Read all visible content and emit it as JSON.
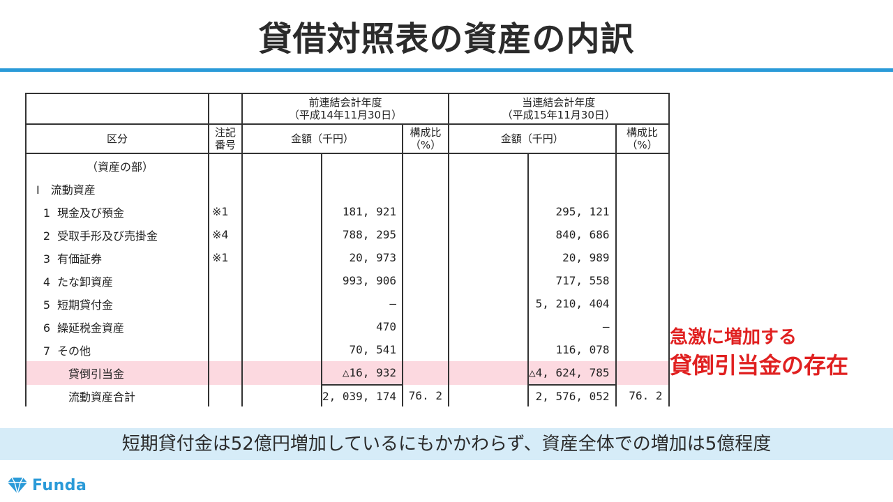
{
  "title": "貸借対照表の資産の内訳",
  "table": {
    "header": {
      "prev_period_label": "前連結会計年度",
      "prev_period_date": "（平成14年11月30日）",
      "curr_period_label": "当連結会計年度",
      "curr_period_date": "（平成15年11月30日）",
      "category": "区分",
      "note_line1": "注記",
      "note_line2": "番号",
      "amount_prev": "金額（千円）",
      "ratio_prev_line1": "構成比",
      "ratio_prev_line2": "（%）",
      "amount_curr": "金額（千円）",
      "ratio_curr_line1": "構成比",
      "ratio_curr_line2": "（%）"
    },
    "section_label": "（資産の部）",
    "group_label": "Ⅰ　流動資産",
    "rows": [
      {
        "num": "1",
        "label": "現金及び預金",
        "note": "※1",
        "prev": "181, 921",
        "curr": "295, 121"
      },
      {
        "num": "2",
        "label": "受取手形及び売掛金",
        "note": "※4",
        "prev": "788, 295",
        "curr": "840, 686"
      },
      {
        "num": "3",
        "label": "有価証券",
        "note": "※1",
        "prev": "20, 973",
        "curr": "20, 989"
      },
      {
        "num": "4",
        "label": "たな卸資産",
        "note": "",
        "prev": "993, 906",
        "curr": "717, 558"
      },
      {
        "num": "5",
        "label": "短期貸付金",
        "note": "",
        "prev": "—",
        "curr": "5, 210, 404"
      },
      {
        "num": "6",
        "label": "繰延税金資産",
        "note": "",
        "prev": "470",
        "curr": "—"
      },
      {
        "num": "7",
        "label": "その他",
        "note": "",
        "prev": "70, 541",
        "curr": "116, 078"
      }
    ],
    "allowance": {
      "label": "貸倒引当金",
      "prev": "△16, 932",
      "curr": "△4, 624, 785"
    },
    "total": {
      "label": "流動資産合計",
      "prev": "2, 039, 174",
      "prev_ratio": "76. 2",
      "curr": "2, 576, 052",
      "curr_ratio": "76. 2"
    }
  },
  "annotation": {
    "line1": "急激に増加する",
    "line2": "貸倒引当金の存在"
  },
  "banner": "短期貸付金は52億円増加しているにもかかわらず、資産全体での増加は5億程度",
  "brand": {
    "name": "Funda",
    "color": "#2a9ad8"
  },
  "colors": {
    "accent": "#2a9ad8",
    "highlight": "#fcd9e0",
    "annotation": "#e02020",
    "banner_bg": "#d6ecf8"
  }
}
